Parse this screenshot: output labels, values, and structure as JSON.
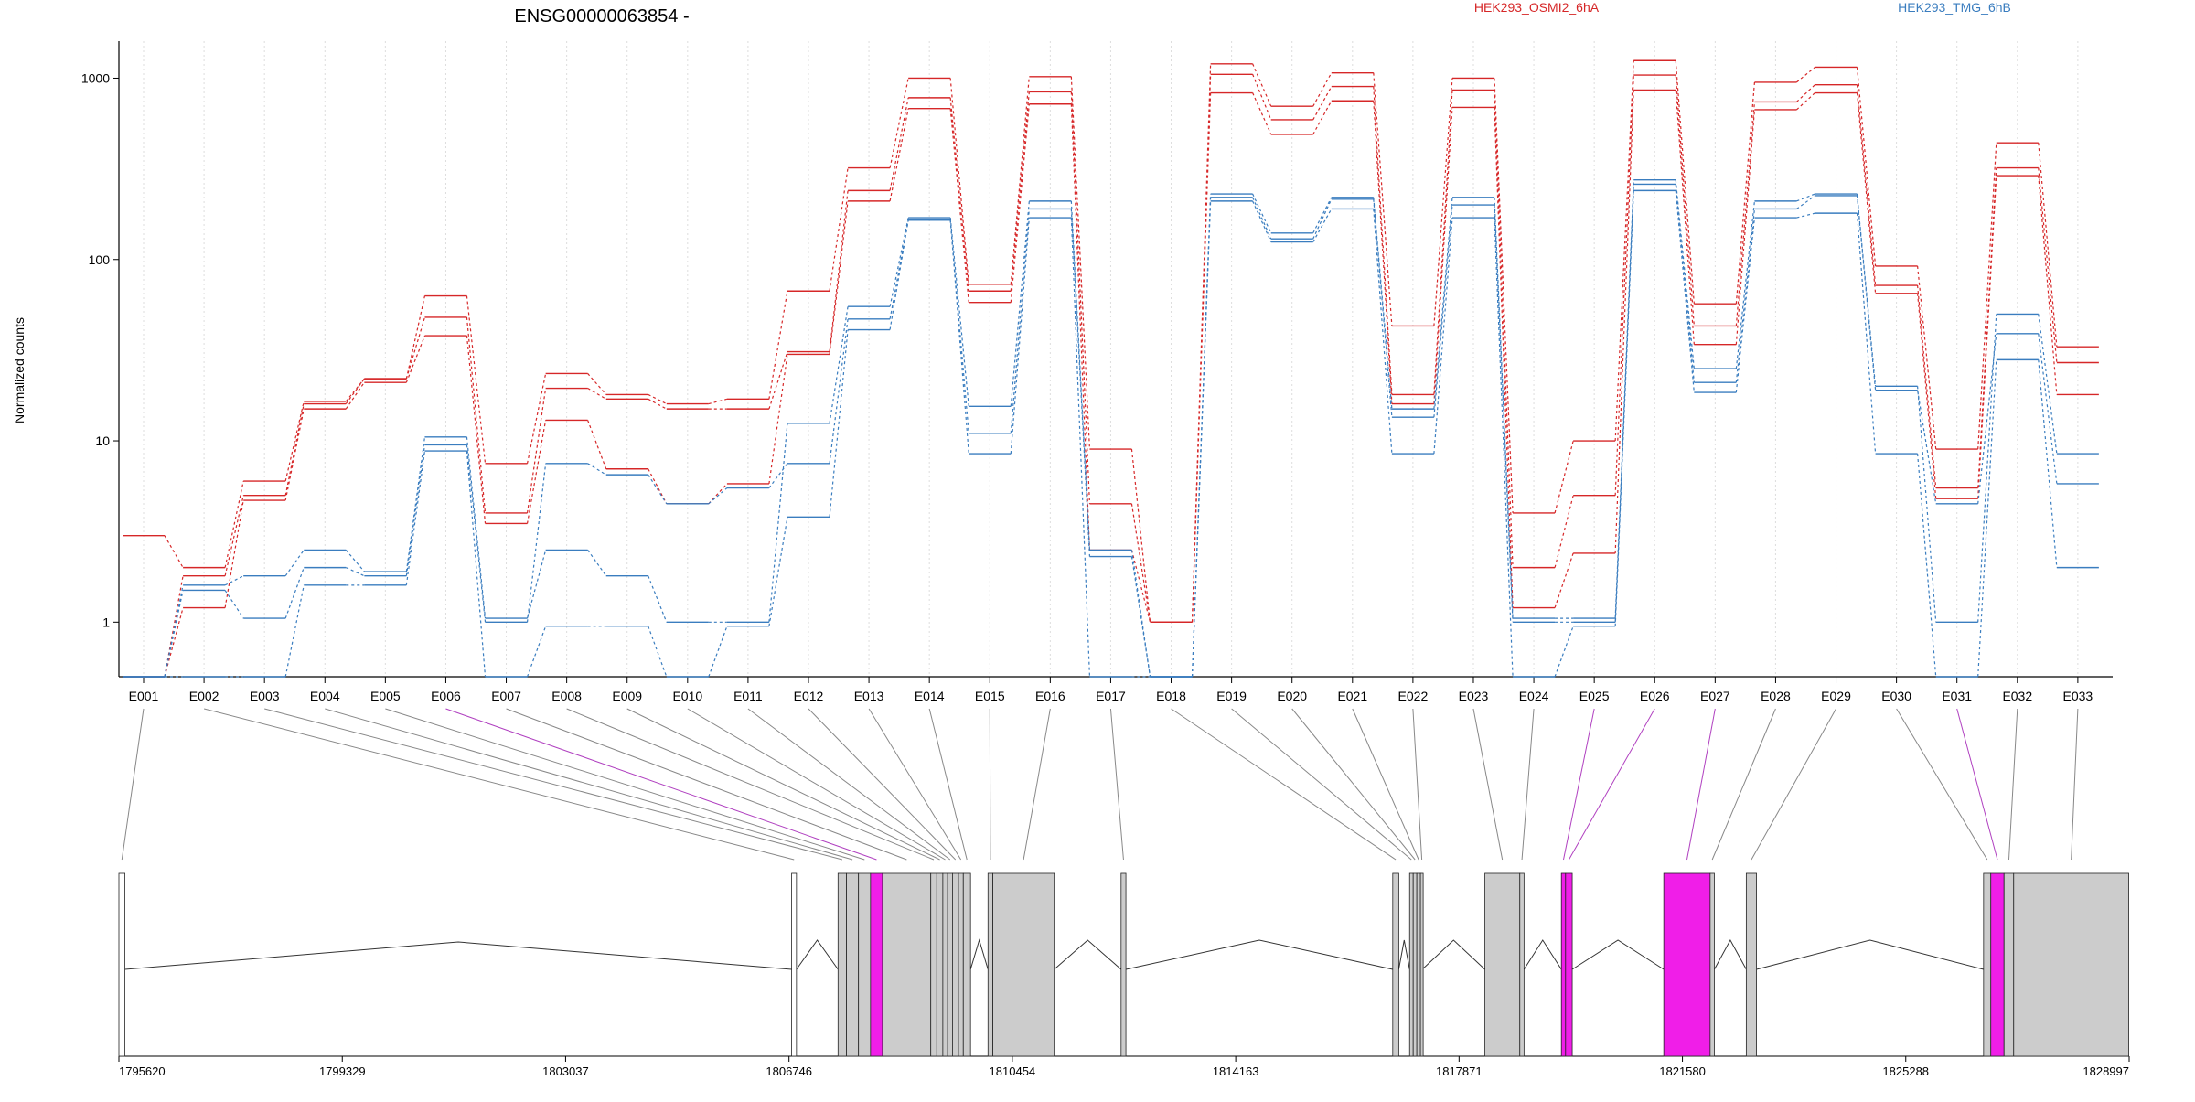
{
  "chart_data": {
    "type": "line",
    "title": "ENSG00000063854 -",
    "ylabel": "Normalized counts",
    "yscale": "log",
    "ylim": [
      0.5,
      1600
    ],
    "yticks": [
      1,
      10,
      100,
      1000
    ],
    "grid": "vertical dotted",
    "legend_placement": "top-right",
    "categories": [
      "E001",
      "E002",
      "E003",
      "E004",
      "E005",
      "E006",
      "E007",
      "E008",
      "E009",
      "E010",
      "E011",
      "E012",
      "E013",
      "E014",
      "E015",
      "E016",
      "E017",
      "E018",
      "E019",
      "E020",
      "E021",
      "E022",
      "E023",
      "E024",
      "E025",
      "E026",
      "E027",
      "E028",
      "E029",
      "E030",
      "E031",
      "E032",
      "E033"
    ],
    "highlighted_exons": [
      "E006",
      "E025",
      "E026",
      "E027",
      "E031"
    ],
    "series": [
      {
        "name": "HEK293_OSMI2_6hA",
        "color": "#d62728",
        "values": [
          3.0,
          2.0,
          6.0,
          16.5,
          22,
          63,
          7.5,
          23.5,
          18,
          16,
          17,
          67,
          320,
          1000,
          73,
          1020,
          9,
          1.0,
          1200,
          700,
          1070,
          43,
          1000,
          4.0,
          10,
          1250,
          57,
          950,
          1150,
          92,
          9.0,
          440,
          33
        ]
      },
      {
        "name": "HEK293_OSMI2_6hA",
        "color": "#d62728",
        "values": [
          0.5,
          1.8,
          5.0,
          16.0,
          22,
          48,
          4.0,
          19.5,
          17,
          15,
          15,
          31,
          240,
          780,
          67,
          840,
          4.5,
          1.0,
          1050,
          590,
          900,
          18,
          860,
          2.0,
          5,
          1040,
          43,
          740,
          920,
          72,
          5.5,
          320,
          27
        ]
      },
      {
        "name": "HEK293_OSMI2_6hA",
        "color": "#d62728",
        "values": [
          0.5,
          1.2,
          4.7,
          15.0,
          21,
          38,
          3.5,
          13.0,
          7.0,
          4.5,
          5.8,
          30,
          210,
          680,
          58,
          720,
          2.5,
          1.0,
          830,
          490,
          750,
          16,
          690,
          1.2,
          2.4,
          860,
          34,
          670,
          830,
          65,
          4.8,
          290,
          18
        ]
      },
      {
        "name": "HEK293_TMG_6hB",
        "color": "#3a7dbf",
        "values": [
          0.5,
          1.6,
          1.8,
          2.5,
          1.9,
          10.5,
          1.05,
          2.5,
          1.8,
          1.0,
          1.0,
          12.5,
          55,
          170,
          15.5,
          210,
          2.5,
          0.5,
          230,
          140,
          220,
          15,
          220,
          1.05,
          1.05,
          275,
          25,
          210,
          230,
          20,
          1.0,
          50,
          8.5
        ]
      },
      {
        "name": "HEK293_TMG_6hB",
        "color": "#3a7dbf",
        "values": [
          0.5,
          1.5,
          1.05,
          2.0,
          1.8,
          9.5,
          1.0,
          7.5,
          6.5,
          4.5,
          5.5,
          7.5,
          47,
          165,
          11,
          190,
          2.3,
          0.5,
          220,
          130,
          215,
          13.5,
          200,
          1.0,
          1.0,
          260,
          21,
          190,
          225,
          19,
          4.5,
          39,
          5.8
        ]
      },
      {
        "name": "HEK293_TMG_6hB",
        "color": "#3a7dbf",
        "values": [
          0.5,
          0.5,
          0.5,
          1.6,
          1.6,
          8.8,
          0.5,
          0.95,
          0.95,
          0.5,
          0.95,
          3.8,
          41,
          165,
          8.5,
          170,
          0.5,
          0.5,
          210,
          125,
          190,
          8.5,
          170,
          0.5,
          0.95,
          240,
          18.5,
          170,
          180,
          8.5,
          0.5,
          28,
          2.0
        ]
      }
    ],
    "gene_model": {
      "coordinate_ticks": [
        "1795620",
        "1799329",
        "1803037",
        "1806746",
        "1810454",
        "1814163",
        "1817871",
        "1821580",
        "1825288",
        "1828997"
      ]
    }
  }
}
